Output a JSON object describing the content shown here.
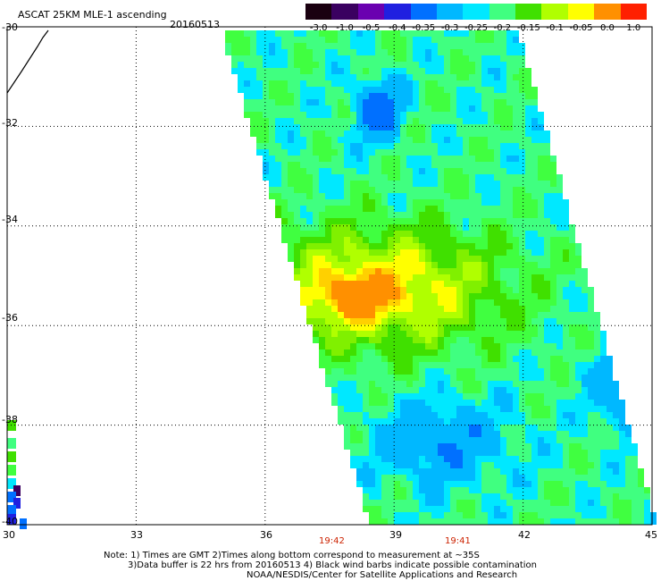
{
  "header": {
    "product": "ASCAT 25KM MLE-1 ascending",
    "date": "20160513"
  },
  "colorbar": {
    "labels": [
      "-3.0",
      "-1.0",
      "-0.5",
      "-0.4",
      "-0.35",
      "-0.3",
      "-0.25",
      "-0.2",
      "-0.15",
      "-0.1",
      "-0.05",
      "0.0",
      "1.0"
    ],
    "colors": [
      "#1a0010",
      "#3a0060",
      "#6a00b0",
      "#2020e0",
      "#0070ff",
      "#00b8ff",
      "#00e8ff",
      "#40ff80",
      "#40e000",
      "#b0ff00",
      "#ffff00",
      "#ff9000",
      "#ff2000"
    ]
  },
  "axes": {
    "lat_labels": [
      "-30",
      "-32",
      "-34",
      "-36",
      "-38",
      "-40"
    ],
    "lon_labels": [
      "30",
      "33",
      "36",
      "39",
      "42",
      "45"
    ],
    "lat_values": [
      -30,
      -32,
      -34,
      -36,
      -38,
      -40
    ],
    "lon_values": [
      30,
      33,
      36,
      39,
      42,
      45
    ]
  },
  "times": [
    {
      "label": "19:42",
      "lon": 38.2
    },
    {
      "label": "19:41",
      "lon": 41.2
    }
  ],
  "notes": {
    "line1": "Note: 1) Times are GMT  2)Times along bottom correspond to measurement at ~35S",
    "line2": "3)Data buffer is 22 hrs from 20160513  4) Black wind barbs indicate possible contamination",
    "line3": "NOAA/NESDIS/Center for Satellite Applications and Research"
  }
}
